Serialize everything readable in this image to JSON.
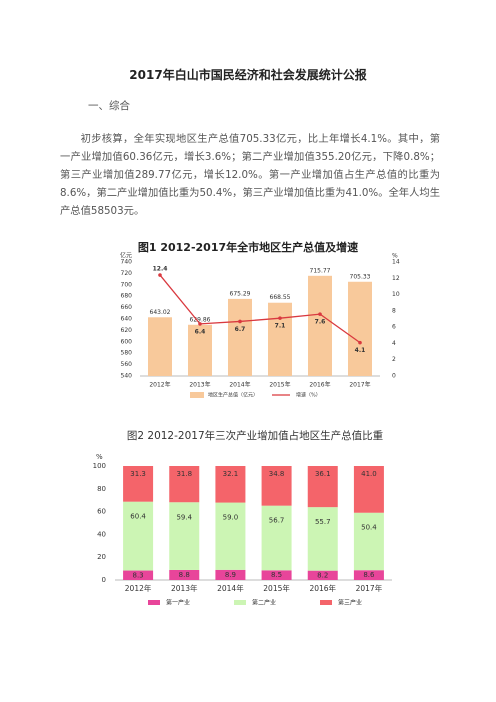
{
  "document": {
    "title": "2017年白山市国民经济和社会发展统计公报",
    "section": "一、综合",
    "paragraph": "初步核算，全年实现地区生产总值705.33亿元，比上年增长4.1%。其中，第一产业增加值60.36亿元，增长3.6%；第二产业增加值355.20亿元，下降0.8%；第三产业增加值289.77亿元，增长12.0%。第一产业增加值占生产总值的比重为8.6%，第二产业增加值比重为50.4%，第三产业增加值比重为41.0%。全年人均生产总值58503元。"
  },
  "chart_data": [
    {
      "type": "bar",
      "title": "图1  2012-2017年全市地区生产总值及增速",
      "ylabel": "亿元",
      "y2label": "%",
      "categories": [
        "2012年",
        "2013年",
        "2014年",
        "2015年",
        "2016年",
        "2017年"
      ],
      "series": [
        {
          "name": "地区生产总值（亿元）",
          "color": "#f8c99b",
          "values": [
            643.02,
            629.86,
            675.29,
            668.55,
            715.77,
            705.33
          ]
        },
        {
          "name": "增速（%）",
          "color": "#d9393f",
          "type": "line",
          "axis": "y2",
          "values": [
            12.4,
            6.4,
            6.7,
            7.1,
            7.6,
            4.1
          ]
        }
      ],
      "ylim": [
        540,
        740
      ],
      "yticks": [
        540,
        560,
        580,
        600,
        620,
        640,
        660,
        680,
        700,
        720,
        740
      ],
      "y2lim": [
        0,
        14
      ],
      "y2ticks": [
        0,
        2,
        4,
        6,
        8,
        10,
        12,
        14
      ]
    },
    {
      "type": "stacked_bar",
      "title": "图2  2012-2017年三次产业增加值占地区生产总值比重",
      "ylabel": "%",
      "categories": [
        "2012年",
        "2013年",
        "2014年",
        "2015年",
        "2016年",
        "2017年"
      ],
      "series": [
        {
          "name": "第一产业",
          "color": "#e8459a",
          "values": [
            8.3,
            8.8,
            8.9,
            8.5,
            8.2,
            8.6
          ],
          "value_labels": [
            "8.3",
            "8.8",
            "8.9",
            "8.5",
            "8.2",
            "8.6"
          ]
        },
        {
          "name": "第二产业",
          "color": "#ccf5b4",
          "values": [
            60.4,
            59.4,
            59.0,
            56.7,
            55.7,
            50.4
          ],
          "value_labels": [
            "60.4",
            "59.4",
            "59.0",
            "56.7",
            "55.7",
            "50.4"
          ]
        },
        {
          "name": "第三产业",
          "color": "#f4646a",
          "values": [
            31.3,
            31.8,
            32.1,
            34.8,
            36.1,
            41.0
          ],
          "value_labels": [
            "31.3",
            "31.8",
            "32.1",
            "34.8",
            "36.1",
            "41.0"
          ]
        }
      ],
      "ylim": [
        0,
        100
      ],
      "yticks": [
        0,
        20,
        40,
        60,
        80,
        100
      ]
    }
  ]
}
